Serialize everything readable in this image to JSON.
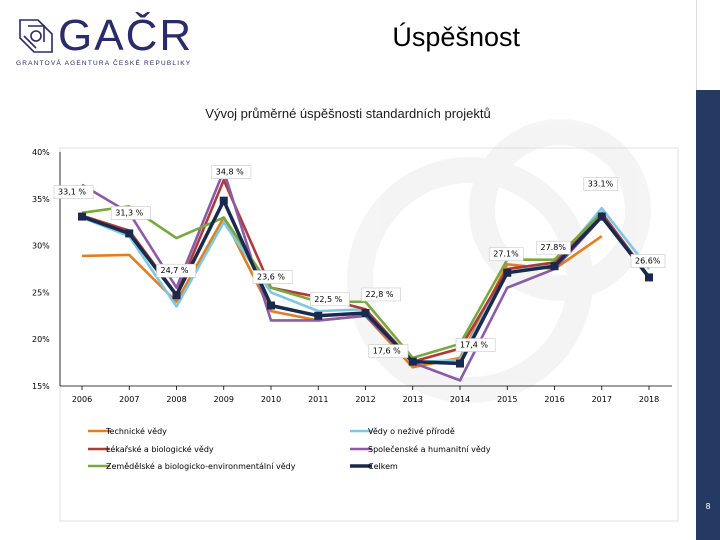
{
  "logo": {
    "name": "GAČR",
    "subtitle": "GRANTOVÁ AGENTURA ČESKÉ REPUBLIKY"
  },
  "slide": {
    "title": "Úspěšnost",
    "page_number": "8"
  },
  "colors": {
    "Technické vědy": "#e37e1f",
    "Vědy o neživé přírodě": "#7ec8e3",
    "Lékařské a biologické vědy": "#b03a3a",
    "Společenské a humanitní vědy": "#8b5ba8",
    "Zemědělské a biologicko-environmentální vědy": "#7aa83e",
    "Celkem": "#1a2a4e",
    "accent_bar": "#243a63"
  },
  "chart_data": {
    "type": "line",
    "title": "Vývoj průměrné úspěšnosti standardních projektů",
    "x": [
      "2006",
      "2007",
      "2008",
      "2009",
      "2010",
      "2011",
      "2012",
      "2013",
      "2014",
      "2015",
      "2016",
      "2017",
      "2018"
    ],
    "y_ticks": [
      "40%",
      "35%",
      "30%",
      "25%",
      "20%",
      "15%"
    ],
    "ylim": [
      15,
      40
    ],
    "series": [
      {
        "name": "Technické vědy",
        "values": [
          28.9,
          29.0,
          24.0,
          33.0,
          23.0,
          22.0,
          22.5,
          17.0,
          18.0,
          28.0,
          27.5,
          31.0,
          null
        ]
      },
      {
        "name": "Vědy o neživé přírodě",
        "values": [
          33.0,
          31.0,
          23.5,
          32.5,
          25.0,
          23.0,
          23.2,
          17.5,
          17.8,
          27.5,
          28.0,
          34.0,
          27.5
        ]
      },
      {
        "name": "Lékařské a biologické vědy",
        "values": [
          33.2,
          31.6,
          24.8,
          37.0,
          25.5,
          24.5,
          23.2,
          17.6,
          19.0,
          27.5,
          28.2,
          33.5,
          26.7
        ]
      },
      {
        "name": "Společenské a humanitní vědy",
        "values": [
          36.5,
          33.5,
          25.5,
          38.0,
          22.0,
          22.0,
          22.5,
          17.5,
          15.6,
          25.5,
          27.5,
          33.0,
          26.6
        ]
      },
      {
        "name": "Zemědělské a biologicko-environmentální vědy",
        "values": [
          33.5,
          34.2,
          30.8,
          33.0,
          25.5,
          24.0,
          24.0,
          18.0,
          19.5,
          28.5,
          28.5,
          33.5,
          null
        ]
      },
      {
        "name": "Celkem",
        "values": [
          33.1,
          31.3,
          24.7,
          34.8,
          23.6,
          22.5,
          22.8,
          17.6,
          17.4,
          27.1,
          27.8,
          33.1,
          26.6
        ]
      }
    ],
    "data_labels": [
      {
        "series": "Celkem",
        "index": 0,
        "text": "33,1 %"
      },
      {
        "series": "Celkem",
        "index": 1,
        "text": "31,3 %"
      },
      {
        "series": "Celkem",
        "index": 2,
        "text": "24,7 %"
      },
      {
        "series": "Celkem",
        "index": 3,
        "text": "34,8 %"
      },
      {
        "series": "Celkem",
        "index": 4,
        "text": "23,6 %"
      },
      {
        "series": "Celkem",
        "index": 5,
        "text": "22,5 %"
      },
      {
        "series": "Celkem",
        "index": 6,
        "text": "22,8 %"
      },
      {
        "series": "Celkem",
        "index": 7,
        "text": "17,6 %"
      },
      {
        "series": "Celkem",
        "index": 8,
        "text": "17,4 %"
      },
      {
        "series": "Celkem",
        "index": 9,
        "text": "27.1%"
      },
      {
        "series": "Celkem",
        "index": 10,
        "text": "27.8%"
      },
      {
        "series": "Celkem",
        "index": 11,
        "text": "33.1%"
      },
      {
        "series": "Celkem",
        "index": 12,
        "text": "26.6%"
      }
    ],
    "legend": [
      "Technické vědy",
      "Vědy o neživé přírodě",
      "Lékařské a biologické vědy",
      "Společenské a humanitní vědy",
      "Zemědělské a biologicko-environmentální vědy",
      "Celkem"
    ]
  }
}
